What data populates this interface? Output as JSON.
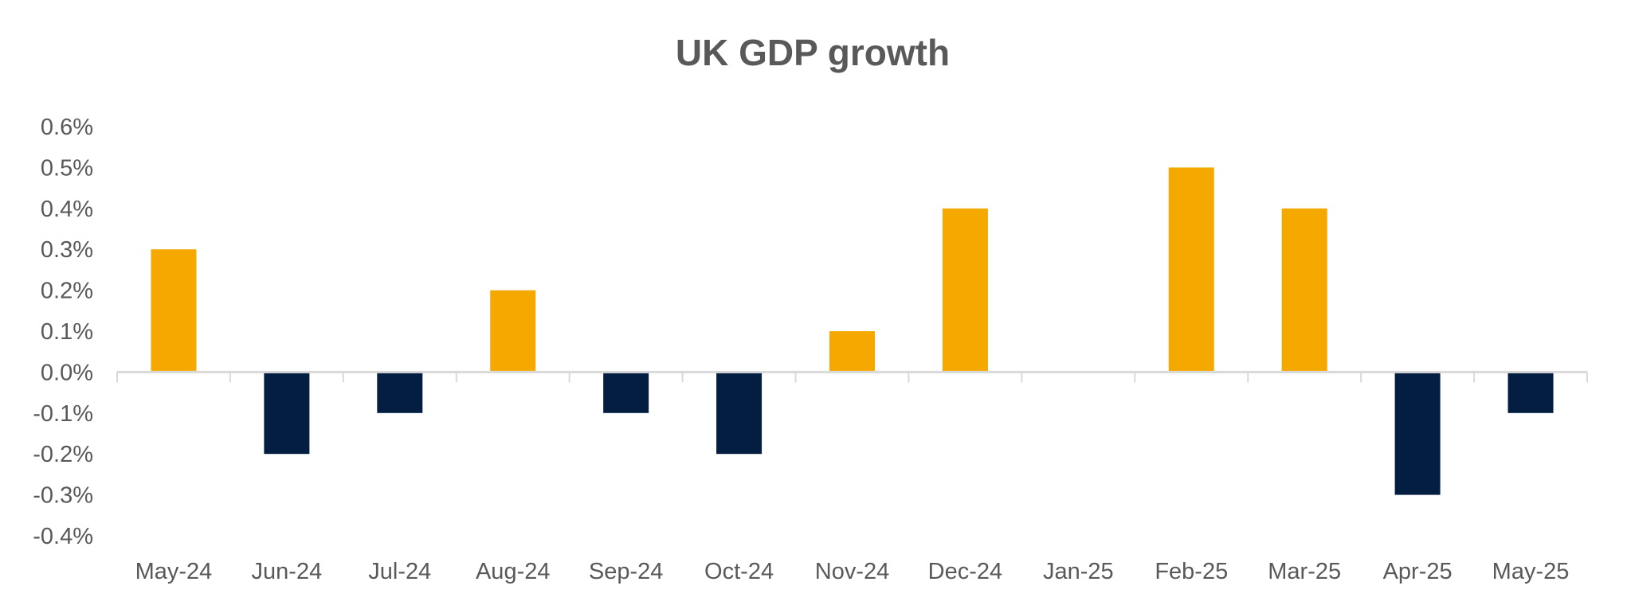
{
  "chart_data": {
    "type": "bar",
    "title": "UK GDP growth",
    "xlabel": "",
    "ylabel": "",
    "categories": [
      "May-24",
      "Jun-24",
      "Jul-24",
      "Aug-24",
      "Sep-24",
      "Oct-24",
      "Nov-24",
      "Dec-24",
      "Jan-25",
      "Feb-25",
      "Mar-25",
      "Apr-25",
      "May-25"
    ],
    "values": [
      0.3,
      -0.2,
      -0.1,
      0.2,
      -0.1,
      -0.2,
      0.1,
      0.4,
      0.0,
      0.5,
      0.4,
      -0.3,
      -0.1
    ],
    "unit": "%",
    "ylim": [
      -0.4,
      0.6
    ],
    "yticks": [
      "0.6%",
      "0.5%",
      "0.4%",
      "0.3%",
      "0.2%",
      "0.1%",
      "0.0%",
      "-0.1%",
      "-0.2%",
      "-0.3%",
      "-0.4%"
    ],
    "grid": false,
    "legend": "none",
    "colors": {
      "positive": "#F5A800",
      "negative": "#041E42",
      "axis": "#D9D9D9",
      "text": "#595959"
    }
  }
}
